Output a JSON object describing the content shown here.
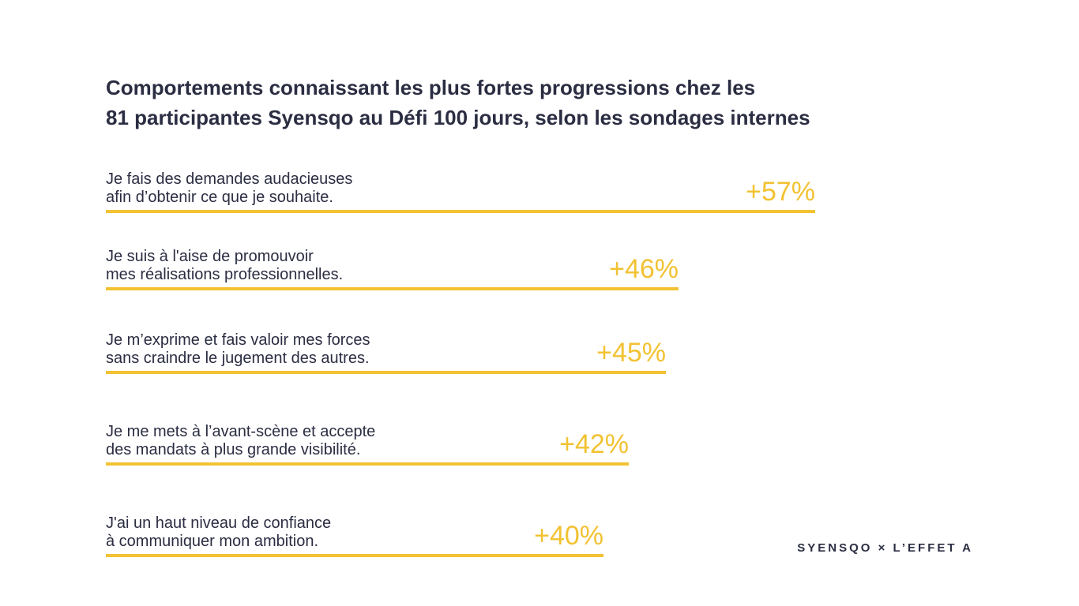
{
  "title_lines": [
    "Comportements connaissant les plus fortes progressions chez les",
    "81 participantes Syensqo au Défi 100 jours, selon les sondages internes"
  ],
  "chart_data": {
    "type": "bar",
    "orientation": "horizontal",
    "title": "Comportements connaissant les plus fortes progressions chez les 81 participantes Syensqo au Défi 100 jours, selon les sondages internes",
    "categories": [
      [
        "Je fais des demandes audacieuses",
        "afin d’obtenir ce que je souhaite."
      ],
      [
        "Je suis à l'aise de promouvoir",
        "mes réalisations professionnelles."
      ],
      [
        "Je m’exprime et fais valoir mes forces",
        "sans craindre le jugement des autres."
      ],
      [
        "Je me mets à l’avant-scène et accepte",
        "des mandats à plus grande visibilité."
      ],
      [
        "J'ai un haut niveau de confiance",
        "à communiquer mon ambition."
      ]
    ],
    "values": [
      57,
      46,
      45,
      42,
      40
    ],
    "value_labels": [
      "+57%",
      "+46%",
      "+45%",
      "+42%",
      "+40%"
    ],
    "bar_color": "#F2C232",
    "text_color": "#2B2D42"
  },
  "brand": "SYENSQO × L’EFFET A"
}
